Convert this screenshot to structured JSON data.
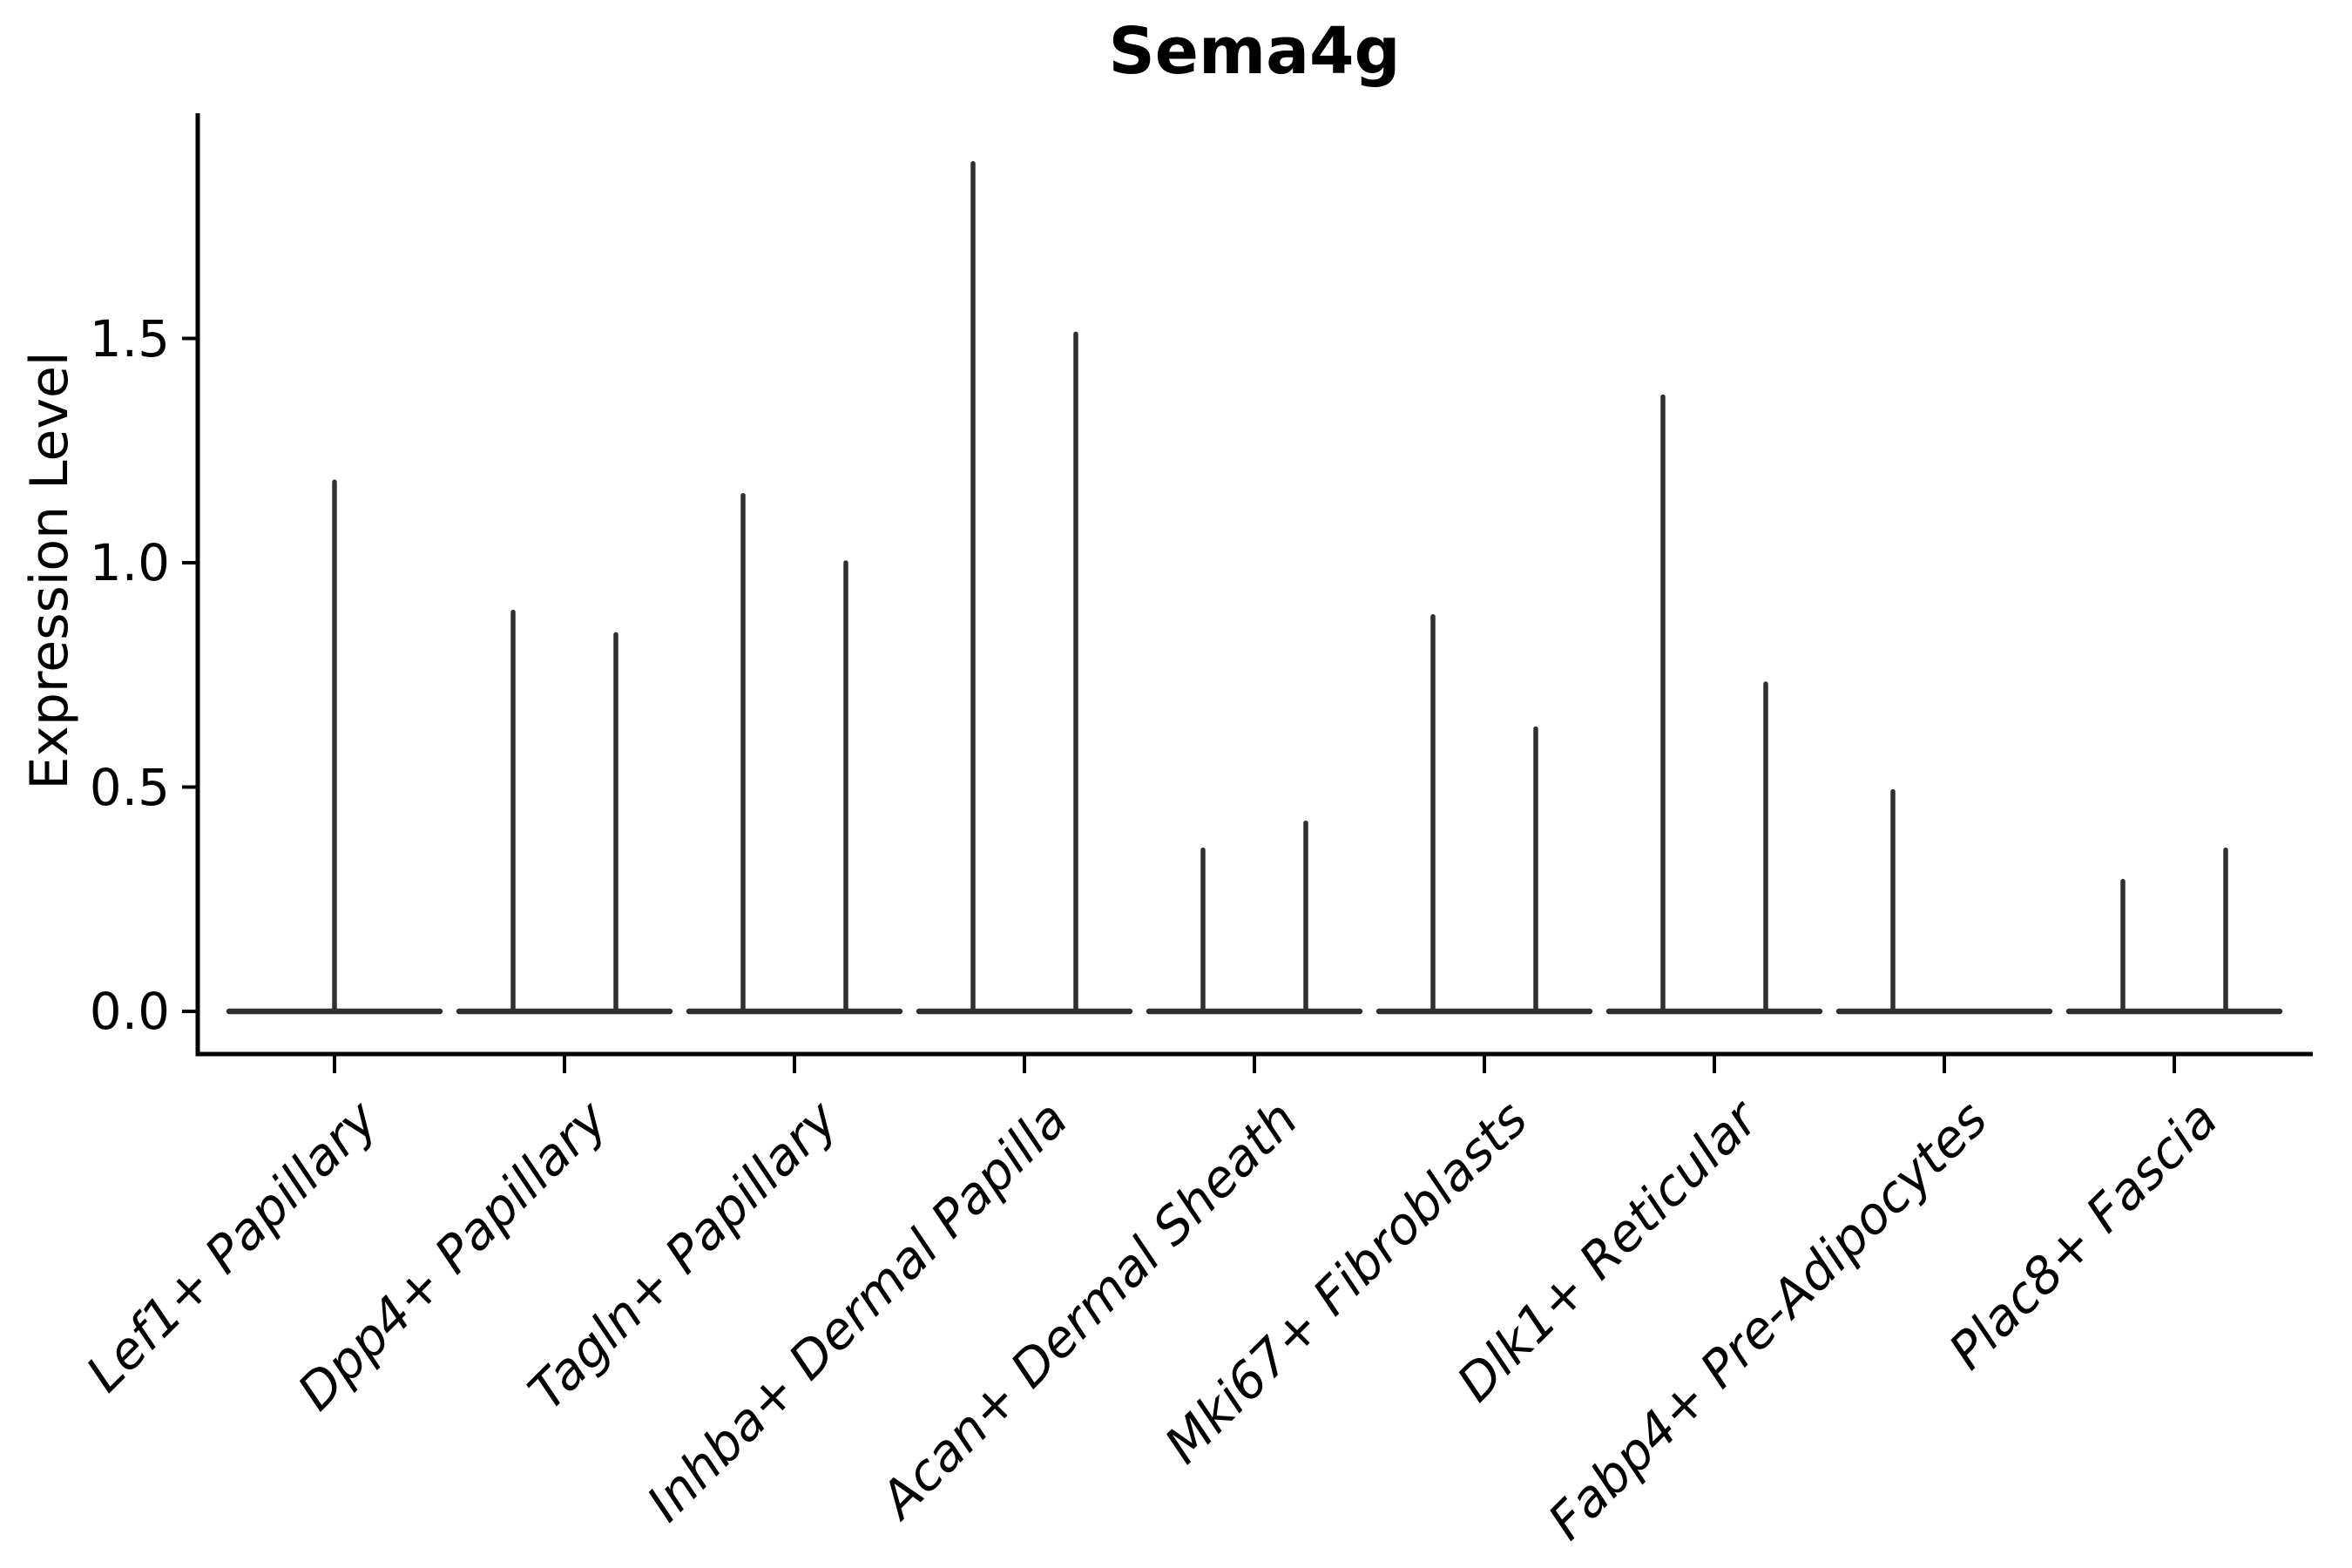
{
  "title": "Sema4g",
  "y_axis": {
    "label": "Expression Level",
    "tick_labels": [
      "0.0",
      "0.5",
      "1.0",
      "1.5"
    ]
  },
  "chart_data": {
    "type": "violin",
    "title": "Sema4g",
    "xlabel": "",
    "ylabel": "Expression Level",
    "ylim": [
      0,
      2.0
    ],
    "yticks": [
      0.0,
      0.5,
      1.0,
      1.5
    ],
    "grid": false,
    "legend": "none",
    "line_color": "#303030",
    "axis_color": "#000000",
    "categories": [
      "Lef1+ Papillary",
      "Dpp4+ Papillary",
      "Tagln+ Papillary",
      "Inhba+ Dermal Papilla",
      "Acan+ Dermal Sheath",
      "Mki67+ Fibroblasts",
      "Dlk1+ Reticular",
      "Fabp4+ Pre-Adipocytes",
      "Plac8+ Fascia"
    ],
    "series": [
      {
        "category": "Lef1+ Papillary",
        "violins": [
          {
            "slot": "center",
            "max_expression": 1.18
          }
        ]
      },
      {
        "category": "Dpp4+ Papillary",
        "violins": [
          {
            "slot": "left",
            "max_expression": 0.89
          },
          {
            "slot": "right",
            "max_expression": 0.84
          }
        ]
      },
      {
        "category": "Tagln+ Papillary",
        "violins": [
          {
            "slot": "left",
            "max_expression": 1.15
          },
          {
            "slot": "right",
            "max_expression": 1.0
          }
        ]
      },
      {
        "category": "Inhba+ Dermal Papilla",
        "violins": [
          {
            "slot": "left",
            "max_expression": 1.89
          },
          {
            "slot": "right",
            "max_expression": 1.51
          }
        ]
      },
      {
        "category": "Acan+ Dermal Sheath",
        "violins": [
          {
            "slot": "left",
            "max_expression": 0.36
          },
          {
            "slot": "right",
            "max_expression": 0.42
          }
        ]
      },
      {
        "category": "Mki67+ Fibroblasts",
        "violins": [
          {
            "slot": "left",
            "max_expression": 0.88
          },
          {
            "slot": "right",
            "max_expression": 0.63
          }
        ]
      },
      {
        "category": "Dlk1+ Reticular",
        "violins": [
          {
            "slot": "left",
            "max_expression": 1.37
          },
          {
            "slot": "right",
            "max_expression": 0.73
          }
        ]
      },
      {
        "category": "Fabp4+ Pre-Adipocytes",
        "violins": [
          {
            "slot": "left",
            "max_expression": 0.49
          }
        ]
      },
      {
        "category": "Plac8+ Fascia",
        "violins": [
          {
            "slot": "left",
            "max_expression": 0.29
          },
          {
            "slot": "right",
            "max_expression": 0.36
          }
        ]
      }
    ]
  }
}
